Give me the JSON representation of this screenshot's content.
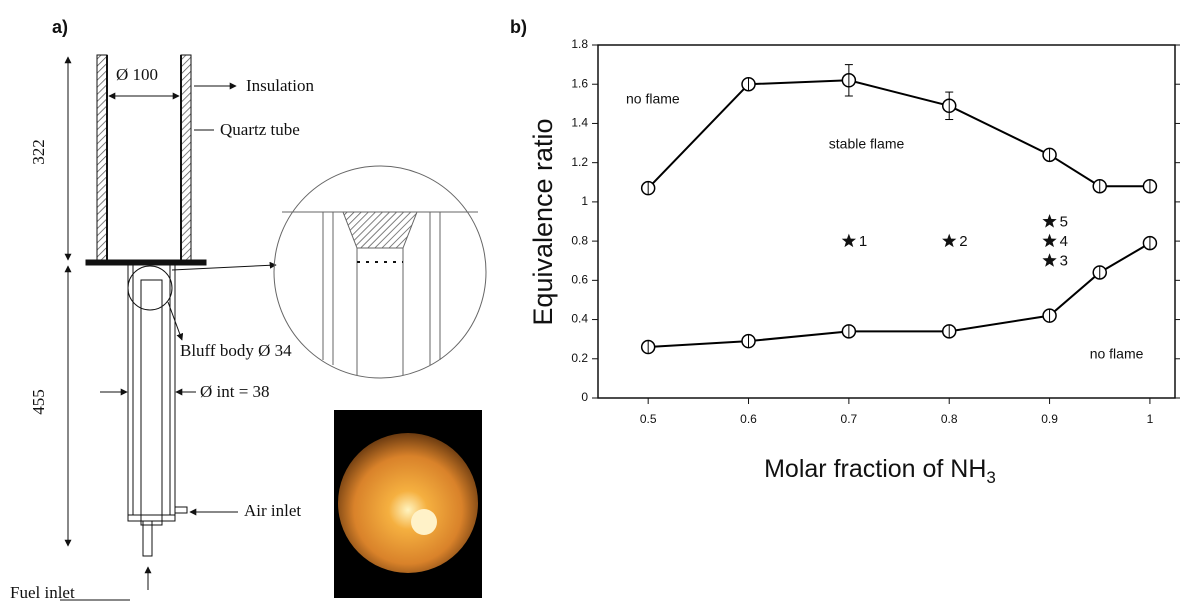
{
  "panel_a": {
    "label": "a)",
    "diameter": "Ø 100",
    "insulation": "Insulation",
    "quartz_tube": "Quartz tube",
    "height_upper": "322",
    "height_lower": "455",
    "bluff_body": "Bluff body Ø 34",
    "inner_diameter": "Ø int = 38",
    "air_inlet": "Air inlet",
    "fuel_inlet": "Fuel inlet"
  },
  "chart_data": {
    "type": "line",
    "panel_label": "b)",
    "x_label": "Molar fraction of NH",
    "x_label_subscript": "3",
    "y_label": "Equivalence ratio",
    "x": [
      0.5,
      0.6,
      0.7,
      0.8,
      0.9,
      0.95,
      1.0
    ],
    "series": [
      {
        "color": "#000000",
        "values": [
          1.07,
          1.6,
          1.62,
          1.49,
          1.24,
          1.08,
          1.08
        ],
        "errors": [
          null,
          null,
          0.08,
          0.07,
          null,
          null,
          null
        ]
      },
      {
        "color": "#000000",
        "values": [
          0.26,
          0.29,
          0.34,
          0.34,
          0.42,
          0.64,
          0.79
        ]
      }
    ],
    "markers": [
      {
        "x": 0.7,
        "y": 0.8,
        "label": "1"
      },
      {
        "x": 0.8,
        "y": 0.8,
        "label": "2"
      },
      {
        "x": 0.9,
        "y": 0.7,
        "label": "3"
      },
      {
        "x": 0.9,
        "y": 0.8,
        "label": "4"
      },
      {
        "x": 0.9,
        "y": 0.9,
        "label": "5"
      }
    ],
    "annotations": [
      "no flame",
      "stable flame",
      "no flame"
    ],
    "xlim": [
      0.45,
      1.025
    ],
    "xticks": [
      0.5,
      0.6,
      0.7,
      0.8,
      0.9,
      1.0
    ],
    "ylim": [
      0,
      1.8
    ],
    "yticks": [
      0.0,
      0.2,
      0.4,
      0.6,
      0.8,
      1.0,
      1.2,
      1.4,
      1.6,
      1.8
    ]
  }
}
